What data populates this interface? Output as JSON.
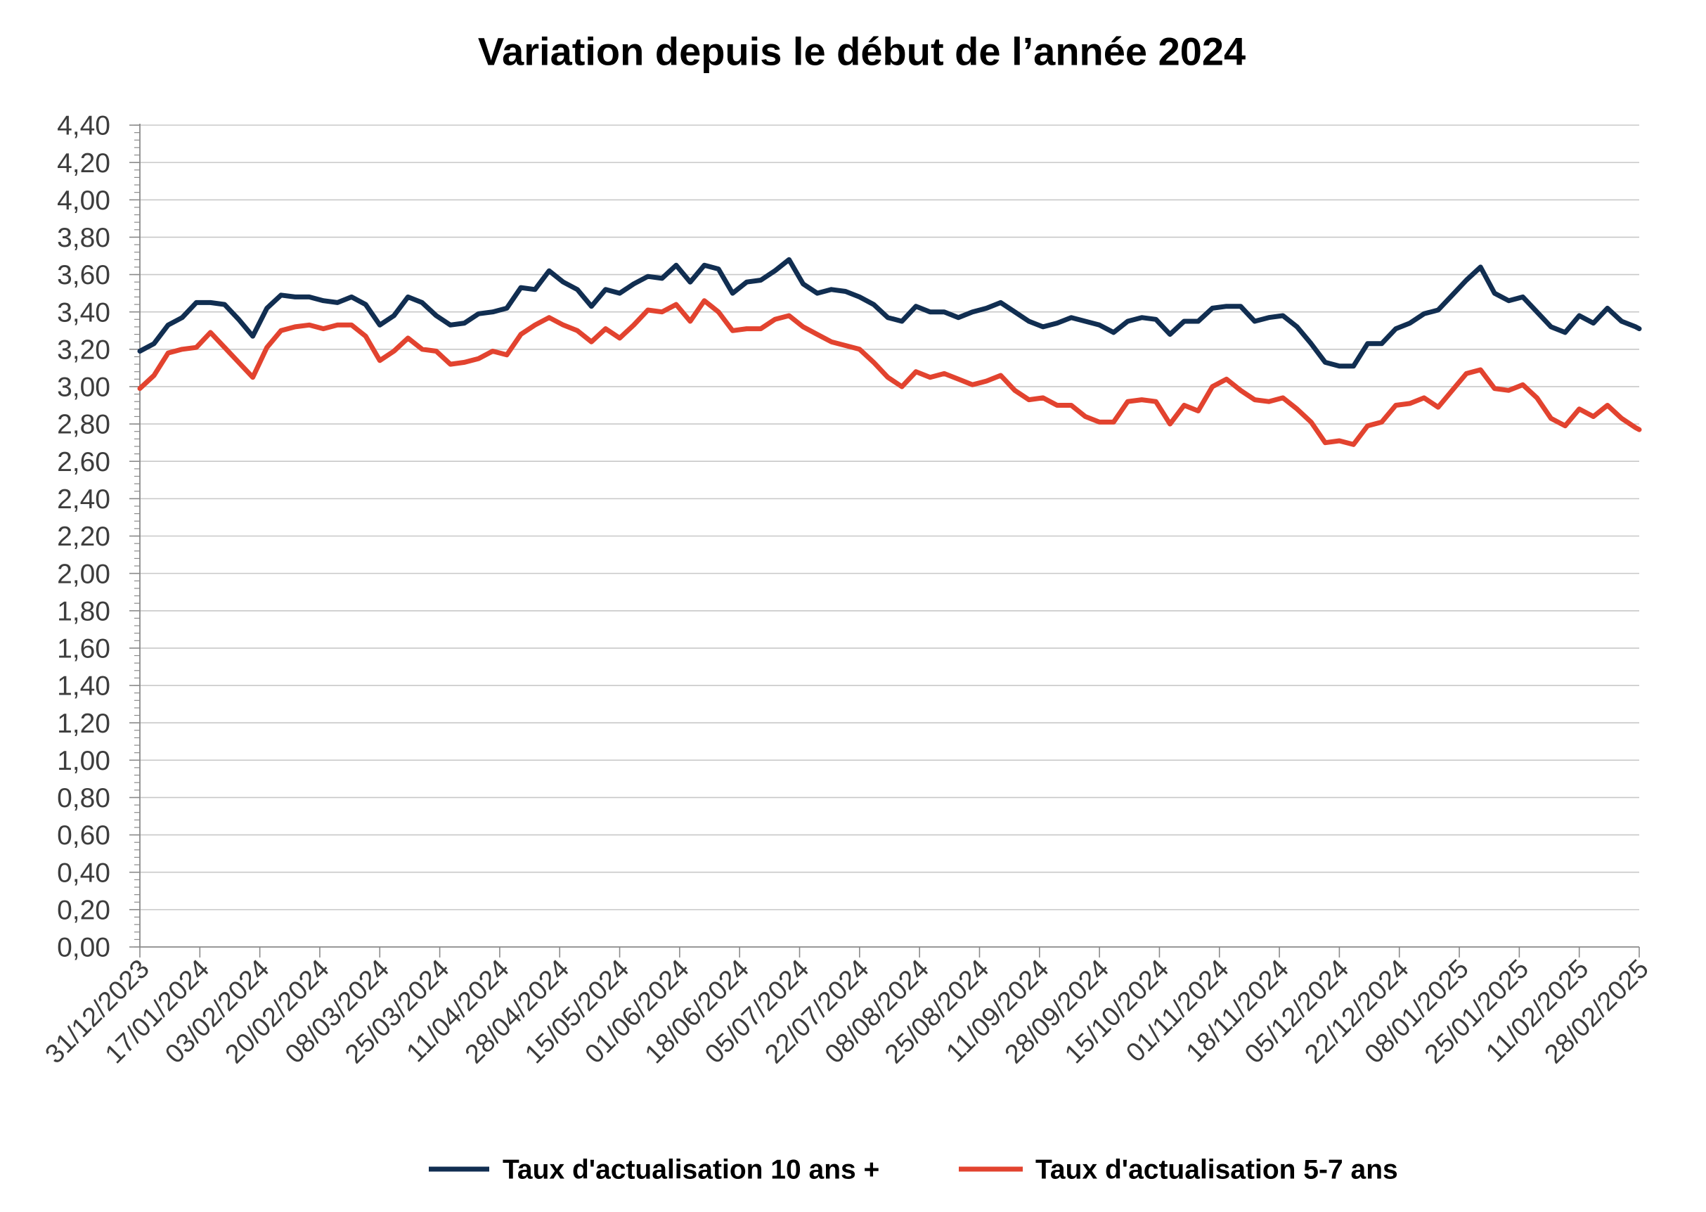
{
  "chart_data": {
    "type": "line",
    "title": "Variation depuis le début de l’année 2024",
    "xlim": [
      "31/12/2023",
      "28/02/2025"
    ],
    "ylim": [
      0,
      4.4
    ],
    "grid": true,
    "legend_position": "bottom",
    "y_tick_labels": [
      "0,00",
      "0,20",
      "0,40",
      "0,60",
      "0,80",
      "1,00",
      "1,20",
      "1,40",
      "1,60",
      "1,80",
      "2,00",
      "2,20",
      "2,40",
      "2,60",
      "2,80",
      "3,00",
      "3,20",
      "3,40",
      "3,60",
      "3,80",
      "4,00",
      "4,20",
      "4,40"
    ],
    "x_tick_labels": [
      "31/12/2023",
      "17/01/2024",
      "03/02/2024",
      "20/02/2024",
      "08/03/2024",
      "25/03/2024",
      "11/04/2024",
      "28/04/2024",
      "15/05/2024",
      "01/06/2024",
      "18/06/2024",
      "05/07/2024",
      "22/07/2024",
      "08/08/2024",
      "25/08/2024",
      "11/09/2024",
      "28/09/2024",
      "15/10/2024",
      "01/11/2024",
      "18/11/2024",
      "05/12/2024",
      "22/12/2024",
      "08/01/2025",
      "25/01/2025",
      "11/02/2025",
      "28/02/2025"
    ],
    "x": [
      "31/12/2023",
      "04/01/2024",
      "08/01/2024",
      "12/01/2024",
      "16/01/2024",
      "20/01/2024",
      "24/01/2024",
      "28/01/2024",
      "01/02/2024",
      "05/02/2024",
      "09/02/2024",
      "13/02/2024",
      "17/02/2024",
      "21/02/2024",
      "25/02/2024",
      "29/02/2024",
      "04/03/2024",
      "08/03/2024",
      "12/03/2024",
      "16/03/2024",
      "20/03/2024",
      "24/03/2024",
      "28/03/2024",
      "01/04/2024",
      "05/04/2024",
      "09/04/2024",
      "13/04/2024",
      "17/04/2024",
      "21/04/2024",
      "25/04/2024",
      "29/04/2024",
      "03/05/2024",
      "07/05/2024",
      "11/05/2024",
      "15/05/2024",
      "19/05/2024",
      "23/05/2024",
      "27/05/2024",
      "31/05/2024",
      "04/06/2024",
      "08/06/2024",
      "12/06/2024",
      "16/06/2024",
      "20/06/2024",
      "24/06/2024",
      "28/06/2024",
      "02/07/2024",
      "06/07/2024",
      "10/07/2024",
      "14/07/2024",
      "18/07/2024",
      "22/07/2024",
      "26/07/2024",
      "30/07/2024",
      "03/08/2024",
      "07/08/2024",
      "11/08/2024",
      "15/08/2024",
      "19/08/2024",
      "23/08/2024",
      "27/08/2024",
      "31/08/2024",
      "04/09/2024",
      "08/09/2024",
      "12/09/2024",
      "16/09/2024",
      "20/09/2024",
      "24/09/2024",
      "28/09/2024",
      "02/10/2024",
      "06/10/2024",
      "10/10/2024",
      "14/10/2024",
      "18/10/2024",
      "22/10/2024",
      "26/10/2024",
      "30/10/2024",
      "03/11/2024",
      "07/11/2024",
      "11/11/2024",
      "15/11/2024",
      "19/11/2024",
      "23/11/2024",
      "27/11/2024",
      "01/12/2024",
      "05/12/2024",
      "09/12/2024",
      "13/12/2024",
      "17/12/2024",
      "21/12/2024",
      "25/12/2024",
      "29/12/2024",
      "02/01/2025",
      "06/01/2025",
      "10/01/2025",
      "14/01/2025",
      "18/01/2025",
      "22/01/2025",
      "26/01/2025",
      "30/01/2025",
      "03/02/2025",
      "07/02/2025",
      "11/02/2025",
      "15/02/2025",
      "19/02/2025",
      "23/02/2025",
      "27/02/2025",
      "28/02/2025"
    ],
    "series": [
      {
        "name": "Taux d'actualisation 10 ans +",
        "color": "#112e51",
        "values": [
          3.19,
          3.23,
          3.33,
          3.37,
          3.45,
          3.45,
          3.44,
          3.36,
          3.27,
          3.42,
          3.49,
          3.48,
          3.48,
          3.46,
          3.45,
          3.48,
          3.44,
          3.33,
          3.38,
          3.48,
          3.45,
          3.38,
          3.33,
          3.34,
          3.39,
          3.4,
          3.42,
          3.53,
          3.52,
          3.62,
          3.56,
          3.52,
          3.43,
          3.52,
          3.5,
          3.55,
          3.59,
          3.58,
          3.65,
          3.56,
          3.65,
          3.63,
          3.5,
          3.56,
          3.57,
          3.62,
          3.68,
          3.55,
          3.5,
          3.52,
          3.51,
          3.48,
          3.44,
          3.37,
          3.35,
          3.43,
          3.4,
          3.4,
          3.37,
          3.4,
          3.42,
          3.45,
          3.4,
          3.35,
          3.32,
          3.34,
          3.37,
          3.35,
          3.33,
          3.29,
          3.35,
          3.37,
          3.36,
          3.28,
          3.35,
          3.35,
          3.42,
          3.43,
          3.43,
          3.35,
          3.37,
          3.38,
          3.32,
          3.23,
          3.13,
          3.11,
          3.11,
          3.23,
          3.23,
          3.31,
          3.34,
          3.39,
          3.41,
          3.49,
          3.57,
          3.64,
          3.5,
          3.46,
          3.48,
          3.4,
          3.32,
          3.29,
          3.38,
          3.34,
          3.42,
          3.35,
          3.32,
          3.31
        ]
      },
      {
        "name": "Taux d'actualisation 5-7 ans",
        "color": "#e2432f",
        "values": [
          2.99,
          3.06,
          3.18,
          3.2,
          3.21,
          3.29,
          3.21,
          3.13,
          3.05,
          3.21,
          3.3,
          3.32,
          3.33,
          3.31,
          3.33,
          3.33,
          3.27,
          3.14,
          3.19,
          3.26,
          3.2,
          3.19,
          3.12,
          3.13,
          3.15,
          3.19,
          3.17,
          3.28,
          3.33,
          3.37,
          3.33,
          3.3,
          3.24,
          3.31,
          3.26,
          3.33,
          3.41,
          3.4,
          3.44,
          3.35,
          3.46,
          3.4,
          3.3,
          3.31,
          3.31,
          3.36,
          3.38,
          3.32,
          3.28,
          3.24,
          3.22,
          3.2,
          3.13,
          3.05,
          3.0,
          3.08,
          3.05,
          3.07,
          3.04,
          3.01,
          3.03,
          3.06,
          2.98,
          2.93,
          2.94,
          2.9,
          2.9,
          2.84,
          2.81,
          2.81,
          2.92,
          2.93,
          2.92,
          2.8,
          2.9,
          2.87,
          3.0,
          3.04,
          2.98,
          2.93,
          2.92,
          2.94,
          2.88,
          2.81,
          2.7,
          2.71,
          2.69,
          2.79,
          2.81,
          2.9,
          2.91,
          2.94,
          2.89,
          2.98,
          3.07,
          3.09,
          2.99,
          2.98,
          3.01,
          2.94,
          2.83,
          2.79,
          2.88,
          2.84,
          2.9,
          2.83,
          2.78,
          2.77
        ]
      }
    ]
  }
}
